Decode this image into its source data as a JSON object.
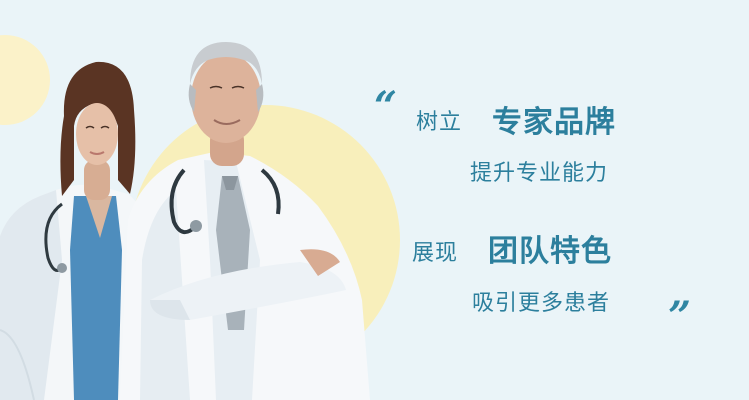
{
  "banner": {
    "quote_open": "“",
    "quote_close": "”",
    "line1": {
      "prefix": "树立",
      "highlight": "专家品牌"
    },
    "line2": "提升专业能力",
    "line3": {
      "prefix": "展现",
      "highlight": "团队特色"
    },
    "line4": "吸引更多患者"
  },
  "colors": {
    "background": "#eaf4f8",
    "accent_text": "#2c7f9d",
    "accent_circle": "#f8efbb"
  },
  "images": {
    "people": "two-doctors-photo"
  }
}
